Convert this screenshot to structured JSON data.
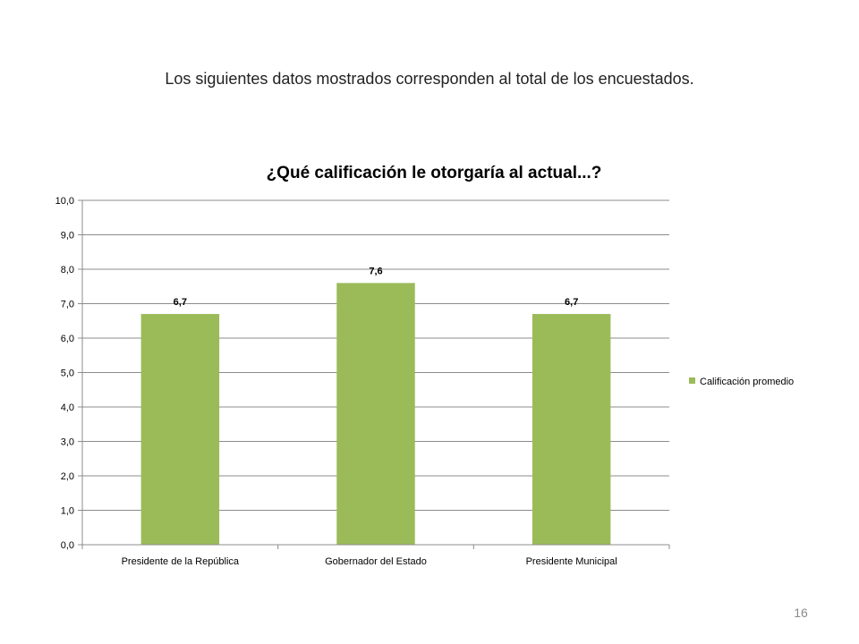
{
  "slide": {
    "subtitle": "Los siguientes datos mostrados corresponden  al total de los encuestados.",
    "page_number": "16"
  },
  "chart_data": {
    "type": "bar",
    "title": "¿Qué calificación le otorgaría al actual...?",
    "categories": [
      "Presidente de la República",
      "Gobernador del Estado",
      "Presidente Municipal"
    ],
    "series": [
      {
        "name": "Calificación promedio",
        "values": [
          6.7,
          7.6,
          6.7
        ],
        "data_labels": [
          "6,7",
          "7,6",
          "6,7"
        ],
        "color": "#9BBB59"
      }
    ],
    "xlabel": "",
    "ylabel": "",
    "ylim": [
      0,
      10
    ],
    "yticks": [
      "0,0",
      "1,0",
      "2,0",
      "3,0",
      "4,0",
      "5,0",
      "6,0",
      "7,0",
      "8,0",
      "9,0",
      "10,0"
    ],
    "grid": true,
    "legend": "right"
  }
}
